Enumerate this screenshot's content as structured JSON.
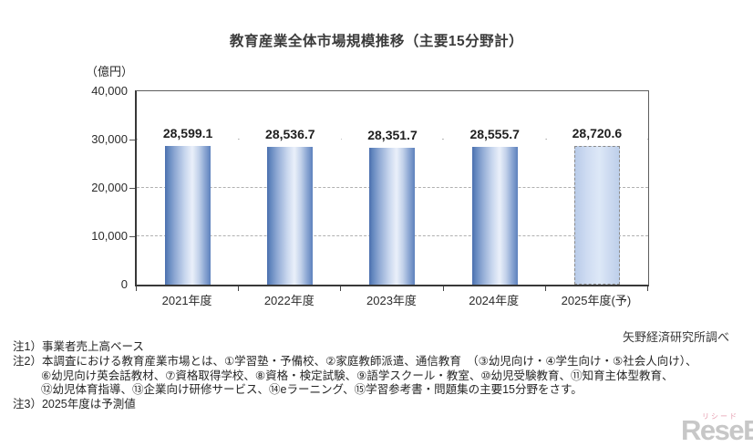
{
  "title": "教育産業全体市場規模推移（主要15分野計）",
  "unit_label": "（億円）",
  "source": "矢野経済研究所調べ",
  "chart_data": {
    "type": "bar",
    "title": "教育産業全体市場規模推移（主要15分野計）",
    "ylabel": "（億円）",
    "categories": [
      "2021年度",
      "2022年度",
      "2023年度",
      "2024年度",
      "2025年度(予)"
    ],
    "values": [
      28599.1,
      28536.7,
      28351.7,
      28555.7,
      28720.6
    ],
    "value_labels": [
      "28,599.1",
      "28,536.7",
      "28,351.7",
      "28,555.7",
      "28,720.6"
    ],
    "ylim": [
      0,
      40000
    ],
    "yticks": [
      0,
      10000,
      20000,
      30000,
      40000
    ],
    "ytick_labels": [
      "0",
      "10,000",
      "20,000",
      "30,000",
      "40,000"
    ],
    "grid": true,
    "legend": "none",
    "forecast_index": 4,
    "bar_edge_color": "#4a6fae",
    "bar_highlight_color": "#eaf0fa",
    "forecast_fill_color": "#cfdcf2",
    "forecast_border_color": "#8a8a8a"
  },
  "notes": [
    "注1）事業者売上高ベース",
    "注2）本調査における教育産業市場とは、①学習塾・予備校、②家庭教師派遣、通信教育　（③幼児向け・④学生向け・⑤社会人向け）、",
    "⑥幼児向け英会話教材、⑦資格取得学校、⑧資格・検定試験、⑨語学スクール・教室、⑩幼児受験教育、⑪知育主体型教育、",
    "⑫幼児体育指導、⑬企業向け研修サービス、⑭eラーニング、⑮学習参考書・問題集の主要15分野をさす。",
    "注3）2025年度は予測値"
  ],
  "logo": {
    "text": "ReseEd",
    "ruby": "リシード"
  }
}
